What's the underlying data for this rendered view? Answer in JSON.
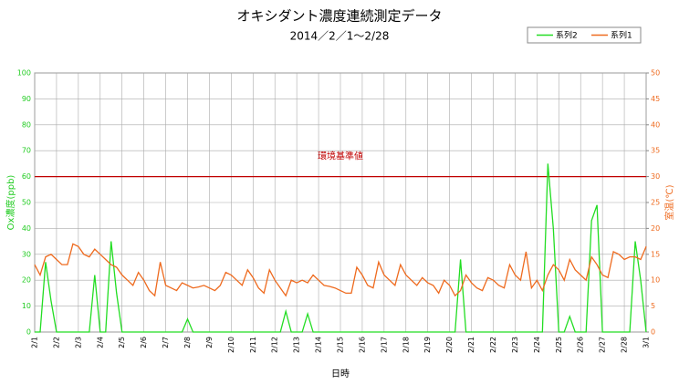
{
  "chart_data": {
    "type": "line",
    "title": "オキシダント濃度連続測定データ",
    "subtitle": "2014／2／1～2/28",
    "xlabel": "日時",
    "ylabel": "Ox濃度(ppb)",
    "y2label": "室温(℃)",
    "reference_line": {
      "value": 60,
      "label": "環境基準値",
      "color": "#c00000"
    },
    "xlim": [
      0,
      28
    ],
    "ylim": [
      0,
      100
    ],
    "y2lim": [
      0,
      50
    ],
    "xticks": [
      {
        "value": 0,
        "label": "2/1"
      },
      {
        "value": 1,
        "label": "2/2"
      },
      {
        "value": 2,
        "label": "2/3"
      },
      {
        "value": 3,
        "label": "2/4"
      },
      {
        "value": 4,
        "label": "2/5"
      },
      {
        "value": 5,
        "label": "2/6"
      },
      {
        "value": 6,
        "label": "2/7"
      },
      {
        "value": 7,
        "label": "2/8"
      },
      {
        "value": 8,
        "label": "2/9"
      },
      {
        "value": 9,
        "label": "2/10"
      },
      {
        "value": 10,
        "label": "2/11"
      },
      {
        "value": 11,
        "label": "2/12"
      },
      {
        "value": 12,
        "label": "2/13"
      },
      {
        "value": 13,
        "label": "2/14"
      },
      {
        "value": 14,
        "label": "2/15"
      },
      {
        "value": 15,
        "label": "2/16"
      },
      {
        "value": 16,
        "label": "2/17"
      },
      {
        "value": 17,
        "label": "2/18"
      },
      {
        "value": 18,
        "label": "2/19"
      },
      {
        "value": 19,
        "label": "2/20"
      },
      {
        "value": 20,
        "label": "2/21"
      },
      {
        "value": 21,
        "label": "2/22"
      },
      {
        "value": 22,
        "label": "2/23"
      },
      {
        "value": 23,
        "label": "2/24"
      },
      {
        "value": 24,
        "label": "2/25"
      },
      {
        "value": 25,
        "label": "2/26"
      },
      {
        "value": 26,
        "label": "2/27"
      },
      {
        "value": 27,
        "label": "2/28"
      },
      {
        "value": 28,
        "label": "3/1"
      }
    ],
    "yticks": [
      0,
      10,
      20,
      30,
      40,
      50,
      60,
      70,
      80,
      90,
      100
    ],
    "y2ticks": [
      0,
      5,
      10,
      15,
      20,
      25,
      30,
      35,
      40,
      45,
      50
    ],
    "grid": true,
    "legend": "top-right",
    "x": [
      0,
      0.25,
      0.5,
      0.75,
      1,
      1.25,
      1.5,
      1.75,
      2,
      2.25,
      2.5,
      2.75,
      3,
      3.25,
      3.5,
      3.75,
      4,
      4.25,
      4.5,
      4.75,
      5,
      5.25,
      5.5,
      5.75,
      6,
      6.25,
      6.5,
      6.75,
      7,
      7.25,
      7.5,
      7.75,
      8,
      8.25,
      8.5,
      8.75,
      9,
      9.25,
      9.5,
      9.75,
      10,
      10.25,
      10.5,
      10.75,
      11,
      11.25,
      11.5,
      11.75,
      12,
      12.25,
      12.5,
      12.75,
      13,
      13.25,
      13.5,
      13.75,
      14,
      14.25,
      14.5,
      14.75,
      15,
      15.25,
      15.5,
      15.75,
      16,
      16.25,
      16.5,
      16.75,
      17,
      17.25,
      17.5,
      17.75,
      18,
      18.25,
      18.5,
      18.75,
      19,
      19.25,
      19.5,
      19.75,
      20,
      20.25,
      20.5,
      20.75,
      21,
      21.25,
      21.5,
      21.75,
      22,
      22.25,
      22.5,
      22.75,
      23,
      23.25,
      23.5,
      23.75,
      24,
      24.25,
      24.5,
      24.75,
      25,
      25.25,
      25.5,
      25.75,
      26,
      26.25,
      26.5,
      26.75,
      27,
      27.25,
      27.5,
      27.75,
      28
    ],
    "series": [
      {
        "name": "系列2",
        "color": "#22dd22",
        "axis": "y",
        "values": [
          0,
          0,
          27,
          12,
          0,
          0,
          0,
          0,
          0,
          0,
          0,
          22,
          0,
          0,
          35,
          15,
          0,
          0,
          0,
          0,
          0,
          0,
          0,
          0,
          0,
          0,
          0,
          0,
          5,
          0,
          0,
          0,
          0,
          0,
          0,
          0,
          0,
          0,
          0,
          0,
          0,
          0,
          0,
          0,
          0,
          0,
          8,
          0,
          0,
          0,
          7,
          0,
          0,
          0,
          0,
          0,
          0,
          0,
          0,
          0,
          0,
          0,
          0,
          0,
          0,
          0,
          0,
          0,
          0,
          0,
          0,
          0,
          0,
          0,
          0,
          0,
          0,
          0,
          28,
          0,
          0,
          0,
          0,
          0,
          0,
          0,
          0,
          0,
          0,
          0,
          0,
          0,
          0,
          0,
          65,
          40,
          0,
          0,
          6,
          0,
          0,
          0,
          43,
          49,
          0,
          0,
          0,
          0,
          0,
          0,
          35,
          20,
          0
        ]
      },
      {
        "name": "系列1",
        "color": "#ee6a1e",
        "axis": "y2",
        "values": [
          13,
          11,
          14.5,
          15,
          14,
          13,
          13,
          17,
          16.5,
          15,
          14.5,
          16,
          15,
          14,
          13,
          12.5,
          11,
          10,
          9,
          11.5,
          10,
          8,
          7,
          13.5,
          9,
          8.5,
          8,
          9.5,
          9,
          8.5,
          8.7,
          9,
          8.5,
          8,
          9,
          11.5,
          11,
          10,
          9,
          12,
          10.5,
          8.5,
          7.5,
          12,
          10,
          8.5,
          7,
          10,
          9.5,
          10,
          9.5,
          11,
          10,
          9,
          8.8,
          8.5,
          8,
          7.5,
          7.5,
          12.5,
          11,
          9,
          8.5,
          13.5,
          11,
          10,
          9,
          13,
          11,
          10,
          9,
          10.5,
          9.5,
          9,
          7.5,
          10,
          9,
          7,
          8,
          11,
          9.5,
          8.5,
          8,
          10.5,
          10,
          9,
          8.5,
          13,
          11,
          10,
          15.5,
          8.5,
          10,
          8,
          11,
          13,
          12,
          10,
          14,
          12,
          11,
          10,
          14.5,
          13,
          11,
          10.5,
          15.5,
          15,
          14,
          14.5,
          14.5,
          14,
          16.5
        ]
      }
    ]
  }
}
